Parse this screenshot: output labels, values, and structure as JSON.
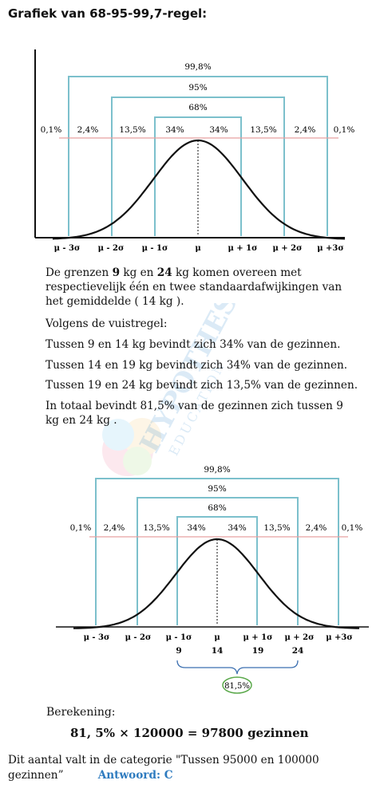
{
  "title": "Grafiek van 68-95-99,7-regel:",
  "graph": {
    "spans": [
      "99,8%",
      "95%",
      "68%"
    ],
    "segments": [
      "0,1%",
      "2,4%",
      "13,5%",
      "34%",
      "34%",
      "13,5%",
      "2,4%",
      "0,1%"
    ],
    "ticks": [
      "μ - 3σ",
      "μ - 2σ",
      "μ - 1σ",
      "μ",
      "μ + 1σ",
      "μ + 2σ",
      "μ +3σ"
    ]
  },
  "graph2": {
    "ticks": [
      "μ - 3σ",
      "μ - 2σ",
      "μ - 1σ",
      "μ",
      "μ + 1σ",
      "μ + 2σ",
      "μ +3σ"
    ],
    "values": [
      "9",
      "14",
      "19",
      "24"
    ],
    "bubble": "81,5%"
  },
  "text": {
    "p1_a": "De grenzen ",
    "p1_b": "9",
    "p1_c": " kg en ",
    "p1_d": "24",
    "p1_e": " kg komen overeen met",
    "p1_line2": "respectievelijk één en twee standaardafwijkingen van",
    "p1_line3": "het gemiddelde ( 14 kg ).",
    "p2": "Volgens de vuistregel:",
    "p3": "Tussen 9 en 14 kg bevindt zich 34% van de gezinnen.",
    "p4": "Tussen 14 en 19 kg bevindt zich 34% van de gezinnen.",
    "p5": "Tussen 19 en 24 kg bevindt zich 13,5% van de gezinnen.",
    "p6_line1": "In totaal bevindt 81,5% van de gezinnen zich tussen 9",
    "p6_line2": "kg en 24 kg .",
    "calc_label": "Berekening:",
    "calc": "81, 5% × 120000 = 97800 gezinnen",
    "final_a": "Dit aantal valt in de categorie \"Tussen 95000 en 100000",
    "final_b": "gezinnen”",
    "answer": "Antwoord: C"
  },
  "watermark": {
    "line1": "HYPOTHESE",
    "line2": "EDUCATION"
  },
  "colors": {
    "bracket": "#7cc0cc",
    "redline": "#e8a0a0",
    "answer": "#2e7bbf",
    "bubble": "#5aa84a",
    "brace": "#3b6fb0"
  }
}
